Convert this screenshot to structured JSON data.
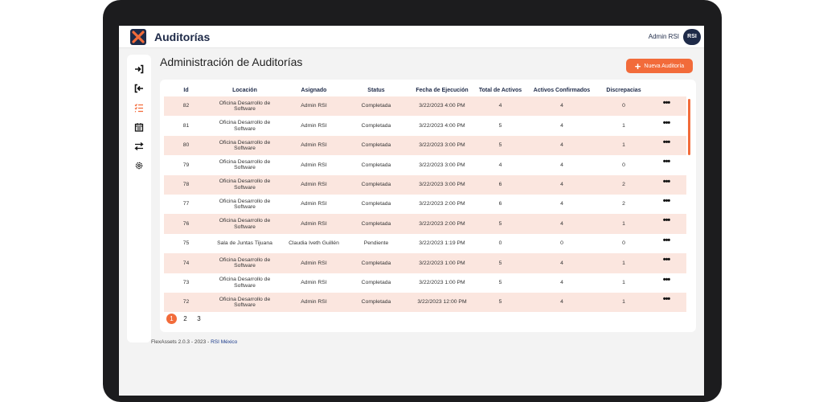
{
  "header": {
    "app_title": "Auditorías",
    "user_name": "Admin RSI",
    "avatar_text": "RSI"
  },
  "sidebar": {
    "items": [
      {
        "icon": "login-icon"
      },
      {
        "icon": "logout-icon"
      },
      {
        "icon": "audit-list-icon",
        "active": true
      },
      {
        "icon": "calendar-icon"
      },
      {
        "icon": "transfer-icon"
      },
      {
        "icon": "settings-icon"
      }
    ]
  },
  "main": {
    "page_title": "Administración de Auditorías",
    "new_button_label": "Nueva Auditoría"
  },
  "table": {
    "columns": [
      "Id",
      "Locación",
      "Asignado",
      "Status",
      "Fecha de Ejecución",
      "Total de Activos",
      "Activos Confirmados",
      "Discrepacias"
    ],
    "rows": [
      [
        "82",
        "Oficina Desarrollo de Software",
        "Admin RSI",
        "Completada",
        "3/22/2023 4:00 PM",
        "4",
        "4",
        "0"
      ],
      [
        "81",
        "Oficina Desarrollo de Software",
        "Admin RSI",
        "Completada",
        "3/22/2023 4:00 PM",
        "5",
        "4",
        "1"
      ],
      [
        "80",
        "Oficina Desarrollo de Software",
        "Admin RSI",
        "Completada",
        "3/22/2023 3:00 PM",
        "5",
        "4",
        "1"
      ],
      [
        "79",
        "Oficina Desarrollo de Software",
        "Admin RSI",
        "Completada",
        "3/22/2023 3:00 PM",
        "4",
        "4",
        "0"
      ],
      [
        "78",
        "Oficina Desarrollo de Software",
        "Admin RSI",
        "Completada",
        "3/22/2023 3:00 PM",
        "6",
        "4",
        "2"
      ],
      [
        "77",
        "Oficina Desarrollo de Software",
        "Admin RSI",
        "Completada",
        "3/22/2023 2:00 PM",
        "6",
        "4",
        "2"
      ],
      [
        "76",
        "Oficina Desarrollo de Software",
        "Admin RSI",
        "Completada",
        "3/22/2023 2:00 PM",
        "5",
        "4",
        "1"
      ],
      [
        "75",
        "Sala de Juntas Tijuana",
        "Claudia Iveth Guillén",
        "Pendiente",
        "3/22/2023 1:19 PM",
        "0",
        "0",
        "0"
      ],
      [
        "74",
        "Oficina Desarrollo de Software",
        "Admin RSI",
        "Completada",
        "3/22/2023 1:00 PM",
        "5",
        "4",
        "1"
      ],
      [
        "73",
        "Oficina Desarrollo de Software",
        "Admin RSI",
        "Completada",
        "3/22/2023 1:00 PM",
        "5",
        "4",
        "1"
      ],
      [
        "72",
        "Oficina Desarrollo de Software",
        "Admin RSI",
        "Completada",
        "3/22/2023 12:00 PM",
        "5",
        "4",
        "1"
      ]
    ],
    "row_action_label": "•••"
  },
  "pagination": {
    "pages": [
      "1",
      "2",
      "3"
    ],
    "current": "1"
  },
  "footer": {
    "version_text": "FlexAssets 2.0.3 - 2023 - ",
    "brand": "RSI México"
  },
  "colors": {
    "accent": "#f26b3a",
    "navy": "#1e2a48",
    "row_highlight": "#fbe6df"
  }
}
